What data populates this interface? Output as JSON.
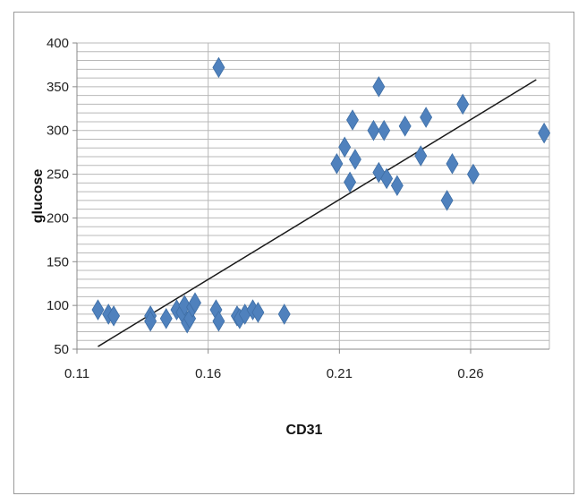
{
  "chart_data": {
    "type": "scatter",
    "title": "",
    "xlabel": "CD31",
    "ylabel": "glucose",
    "xlim": [
      0.11,
      0.29
    ],
    "ylim": [
      50,
      400
    ],
    "x_ticks": [
      0.11,
      0.16,
      0.21,
      0.26
    ],
    "x_tick_labels": [
      "0.11",
      "0.16",
      "0.21",
      "0.26"
    ],
    "y_ticks": [
      50,
      100,
      150,
      200,
      250,
      300,
      350,
      400
    ],
    "y_tick_labels": [
      "50",
      "100",
      "150",
      "200",
      "250",
      "300",
      "350",
      "400"
    ],
    "grid": true,
    "legend": "none",
    "marker": "diamond",
    "marker_color": "#4f81bd",
    "trendline_color": "#1a1a1a",
    "grid_color": "#b8b8b8",
    "series": [
      {
        "points": [
          [
            0.118,
            95
          ],
          [
            0.122,
            90
          ],
          [
            0.124,
            88
          ],
          [
            0.138,
            88
          ],
          [
            0.138,
            82
          ],
          [
            0.144,
            85
          ],
          [
            0.148,
            95
          ],
          [
            0.15,
            92
          ],
          [
            0.151,
            100
          ],
          [
            0.152,
            80
          ],
          [
            0.153,
            85
          ],
          [
            0.154,
            98
          ],
          [
            0.155,
            103
          ],
          [
            0.163,
            95
          ],
          [
            0.164,
            82
          ],
          [
            0.164,
            372
          ],
          [
            0.171,
            88
          ],
          [
            0.172,
            85
          ],
          [
            0.174,
            90
          ],
          [
            0.177,
            95
          ],
          [
            0.179,
            92
          ],
          [
            0.189,
            90
          ],
          [
            0.209,
            262
          ],
          [
            0.212,
            281
          ],
          [
            0.214,
            241
          ],
          [
            0.215,
            312
          ],
          [
            0.216,
            267
          ],
          [
            0.223,
            300
          ],
          [
            0.225,
            350
          ],
          [
            0.225,
            252
          ],
          [
            0.227,
            300
          ],
          [
            0.228,
            245
          ],
          [
            0.232,
            237
          ],
          [
            0.235,
            305
          ],
          [
            0.241,
            271
          ],
          [
            0.243,
            315
          ],
          [
            0.251,
            220
          ],
          [
            0.253,
            262
          ],
          [
            0.257,
            330
          ],
          [
            0.261,
            250
          ],
          [
            0.288,
            297
          ]
        ]
      }
    ],
    "trendline": {
      "type": "linear",
      "start": [
        0.118,
        53
      ],
      "end": [
        0.285,
        358
      ]
    }
  }
}
